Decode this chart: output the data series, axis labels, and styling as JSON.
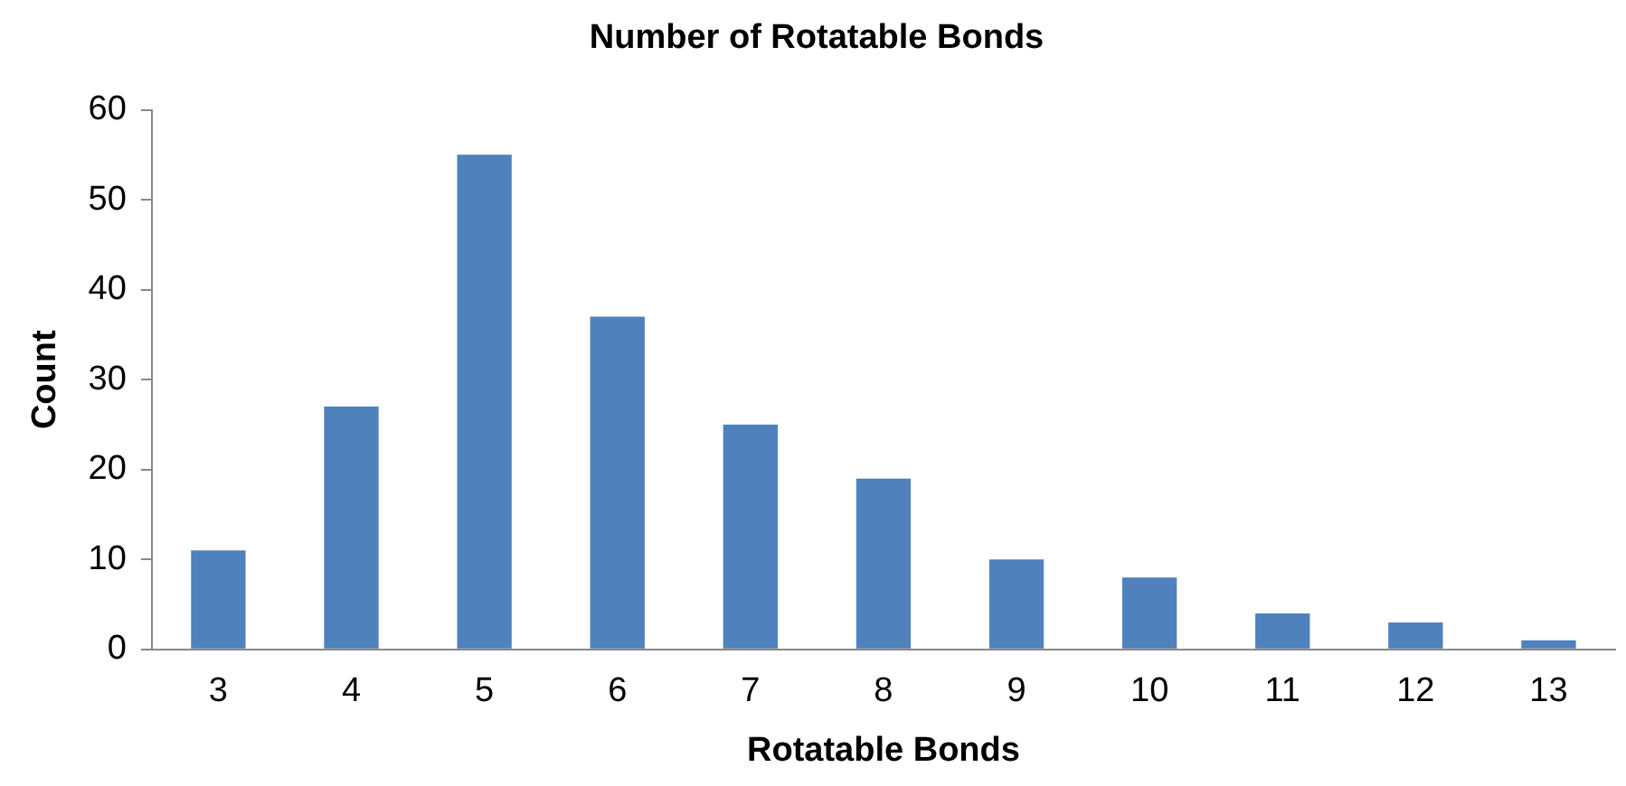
{
  "chart_data": {
    "type": "bar",
    "title": "Number of Rotatable Bonds",
    "xlabel": "Rotatable Bonds",
    "ylabel": "Count",
    "categories": [
      "3",
      "4",
      "5",
      "6",
      "7",
      "8",
      "9",
      "10",
      "11",
      "12",
      "13"
    ],
    "values": [
      11,
      27,
      55,
      37,
      25,
      19,
      10,
      8,
      4,
      3,
      1
    ],
    "color": "#4f81bd",
    "ylim": [
      0,
      60
    ],
    "yticks": [
      0,
      10,
      20,
      30,
      40,
      50,
      60
    ]
  }
}
